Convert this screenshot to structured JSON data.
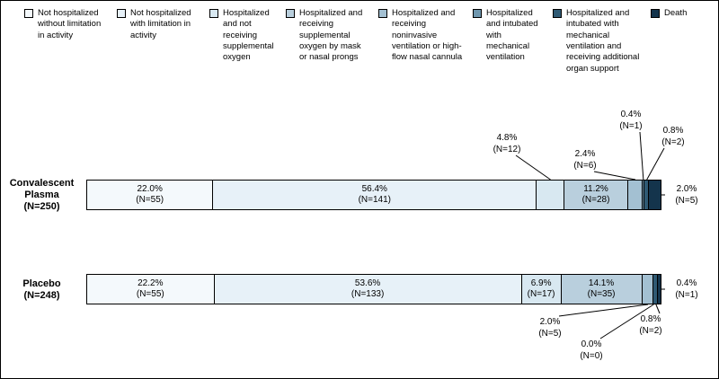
{
  "chart_data": {
    "type": "bar",
    "variant": "horizontal_stacked_100pct",
    "legend_position": "top",
    "xlim": [
      0,
      100
    ],
    "value_unit": "% (N)",
    "categories": [
      "Not hospitalized without limitation in activity",
      "Not hospitalized with limitation in activity",
      "Hospitalized and not receiving supplemental oxygen",
      "Hospitalized and receiving supplemental oxygen by mask or nasal prongs",
      "Hospitalized and receiving noninvasive ventilation or high-flow nasal cannula",
      "Hospitalized and intubated with mechanical ventilation",
      "Hospitalized and intubated with mechanical ventilation and receiving additional organ support",
      "Death"
    ],
    "colors": [
      "#f4f9fc",
      "#e7f1f8",
      "#d8e8f1",
      "#b9cfdd",
      "#a3c0d2",
      "#6f97ae",
      "#2f5a74",
      "#14344c"
    ],
    "series": [
      {
        "name": "Convalescent Plasma (N=250)",
        "label_lines": [
          "Convalescent",
          "Plasma",
          "(N=250)"
        ],
        "values": [
          22.0,
          56.4,
          4.8,
          11.2,
          2.4,
          0.4,
          0.8,
          2.0
        ],
        "counts": [
          55,
          141,
          12,
          28,
          6,
          1,
          2,
          5
        ],
        "placements": [
          "inside",
          "inside",
          "callout",
          "inside",
          "callout",
          "callout",
          "callout",
          "side"
        ],
        "callout_side": "above"
      },
      {
        "name": "Placebo (N=248)",
        "label_lines": [
          "Placebo",
          "(N=248)"
        ],
        "values": [
          22.2,
          53.6,
          6.9,
          14.1,
          2.0,
          0.0,
          0.8,
          0.4
        ],
        "counts": [
          55,
          133,
          17,
          35,
          5,
          0,
          2,
          1
        ],
        "placements": [
          "inside",
          "inside",
          "inside",
          "inside",
          "callout",
          "callout",
          "callout",
          "side"
        ],
        "callout_side": "below"
      }
    ]
  }
}
